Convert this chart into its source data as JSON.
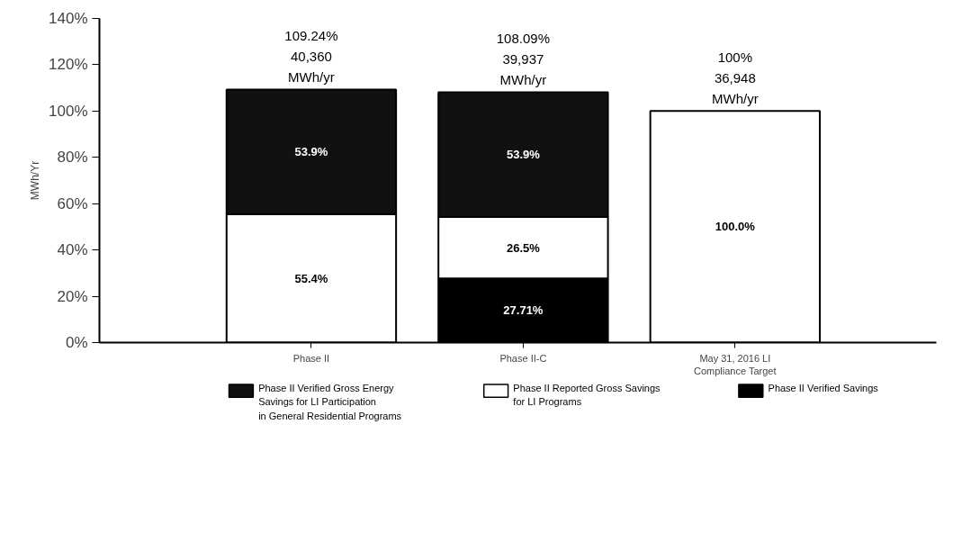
{
  "chart_data": {
    "type": "bar",
    "stacked": true,
    "ylabel": "MWh/Yr",
    "categories": [
      "Phase II",
      "Phase II-C",
      "May 31, 2016 LI\nCompliance Target"
    ],
    "series": [
      {
        "name": "Phase II Verified Savings",
        "color": "#000000",
        "values": [
          null,
          27.71,
          null
        ],
        "value_labels": [
          null,
          "27.71%",
          null
        ]
      },
      {
        "name": "Phase II Reported Gross Savings\nfor LI Programs",
        "color": "#ffffff",
        "values": [
          55.4,
          26.5,
          100
        ],
        "value_labels": [
          "55.4%",
          "26.5%",
          "100.0%"
        ]
      },
      {
        "name": "Phase II Verified Gross Energy\nSavings for LI Participation\nin General Residential Programs",
        "color": "#111111",
        "values": [
          53.9,
          53.9,
          null
        ],
        "value_labels": [
          "53.9%",
          "53.9%",
          null
        ]
      }
    ],
    "totals": [
      "109.24%\n40,360\nMWh/yr",
      "108.09%\n39,937\nMWh/yr",
      "100%\n36,948\nMWh/yr"
    ],
    "ylim": [
      0,
      140
    ],
    "yticks": [
      {
        "value": 0,
        "label": "0%"
      },
      {
        "value": 20,
        "label": "20%"
      },
      {
        "value": 40,
        "label": "40%"
      },
      {
        "value": 60,
        "label": "60%"
      },
      {
        "value": 80,
        "label": "80%"
      },
      {
        "value": 100,
        "label": "100%"
      },
      {
        "value": 120,
        "label": "120%"
      },
      {
        "value": 140,
        "label": "140%"
      }
    ],
    "grid": false,
    "legend": "bottom"
  }
}
